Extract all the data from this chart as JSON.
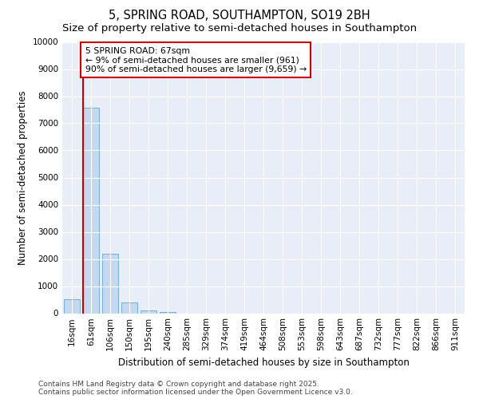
{
  "title1": "5, SPRING ROAD, SOUTHAMPTON, SO19 2BH",
  "title2": "Size of property relative to semi-detached houses in Southampton",
  "xlabel": "Distribution of semi-detached houses by size in Southampton",
  "ylabel": "Number of semi-detached properties",
  "categories": [
    "16sqm",
    "61sqm",
    "106sqm",
    "150sqm",
    "195sqm",
    "240sqm",
    "285sqm",
    "329sqm",
    "374sqm",
    "419sqm",
    "464sqm",
    "508sqm",
    "553sqm",
    "598sqm",
    "643sqm",
    "687sqm",
    "732sqm",
    "777sqm",
    "822sqm",
    "866sqm",
    "911sqm"
  ],
  "values": [
    510,
    7580,
    2200,
    390,
    110,
    55,
    0,
    0,
    0,
    0,
    0,
    0,
    0,
    0,
    0,
    0,
    0,
    0,
    0,
    0,
    0
  ],
  "bar_color": "#c5d8f0",
  "bar_edge_color": "#7aaed6",
  "red_line_x": 0.575,
  "annotation_text": "5 SPRING ROAD: 67sqm\n← 9% of semi-detached houses are smaller (961)\n90% of semi-detached houses are larger (9,659) →",
  "annotation_box_color": "#ffffff",
  "annotation_box_edge": "#cc0000",
  "red_line_color": "#cc0000",
  "ylim": [
    0,
    10000
  ],
  "yticks": [
    0,
    1000,
    2000,
    3000,
    4000,
    5000,
    6000,
    7000,
    8000,
    9000,
    10000
  ],
  "footer": "Contains HM Land Registry data © Crown copyright and database right 2025.\nContains public sector information licensed under the Open Government Licence v3.0.",
  "bg_color": "#e8eef8",
  "grid_color": "#ffffff",
  "title_fontsize": 10.5,
  "subtitle_fontsize": 9.5,
  "axis_label_fontsize": 8.5,
  "tick_fontsize": 7.5,
  "footer_fontsize": 6.5
}
